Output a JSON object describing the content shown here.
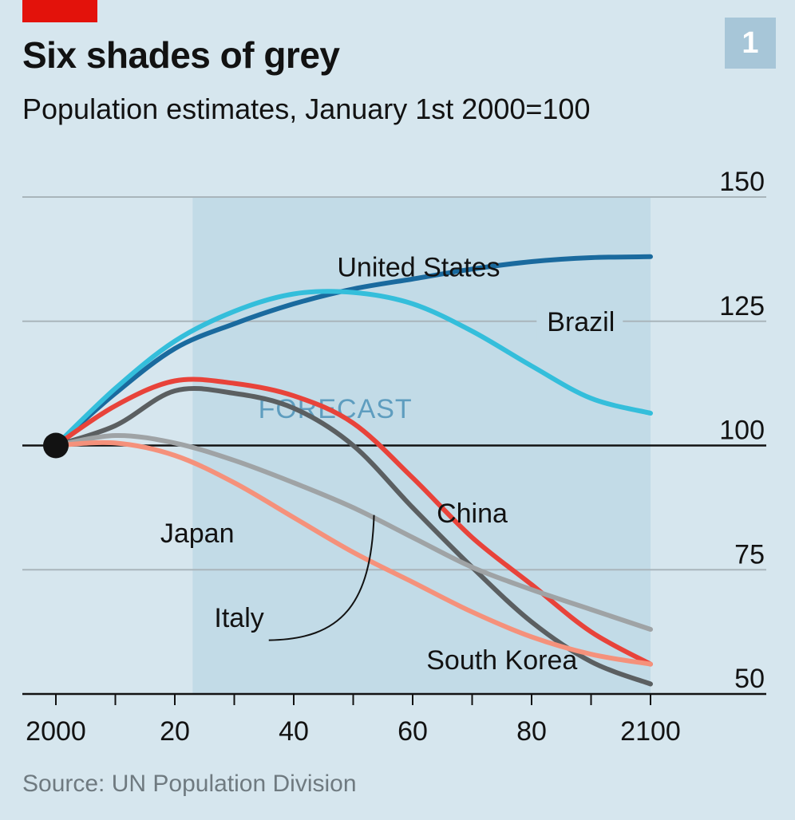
{
  "header": {
    "title": "Six shades of grey",
    "subtitle": "Population estimates, January 1st 2000=100",
    "chart_number": "1"
  },
  "footer": {
    "source": "Source: UN Population Division"
  },
  "colors": {
    "background": "#d6e6ee",
    "forecast_band": "#c2dbe7",
    "accent_red": "#e3120b",
    "grid": "#a9b5bb"
  },
  "chart_data": {
    "type": "line",
    "title": "Six shades of grey",
    "subtitle": "Population estimates, January 1st 2000=100",
    "ylim": [
      50,
      150
    ],
    "xlim": [
      2000,
      2100
    ],
    "y_ticks": [
      50,
      75,
      100,
      125,
      150
    ],
    "y_tick_labels": [
      "50",
      "75",
      "100",
      "125",
      "150"
    ],
    "x_ticks": [
      2000,
      2010,
      2020,
      2030,
      2040,
      2050,
      2060,
      2070,
      2080,
      2090,
      2100
    ],
    "x_tick_labels": [
      {
        "x": 2000,
        "label": "2000"
      },
      {
        "x": 2020,
        "label": "20"
      },
      {
        "x": 2040,
        "label": "40"
      },
      {
        "x": 2060,
        "label": "60"
      },
      {
        "x": 2080,
        "label": "80"
      },
      {
        "x": 2100,
        "label": "2100"
      }
    ],
    "grid": true,
    "forecast": {
      "label": "FORECAST",
      "start": 2023,
      "end": 2100
    },
    "reference_point": {
      "x": 2000,
      "y": 100
    },
    "series": [
      {
        "name": "United States",
        "color": "#1a6a9e",
        "x": [
          2000,
          2010,
          2020,
          2030,
          2040,
          2050,
          2060,
          2070,
          2080,
          2090,
          2100
        ],
        "y": [
          100,
          110.5,
          119.5,
          124.5,
          128.5,
          131.5,
          133.5,
          135.5,
          137.0,
          137.8,
          138.0
        ]
      },
      {
        "name": "Brazil",
        "color": "#34bedb",
        "x": [
          2000,
          2010,
          2020,
          2030,
          2040,
          2050,
          2060,
          2070,
          2080,
          2090,
          2100
        ],
        "y": [
          100,
          111.5,
          121.0,
          127.0,
          130.5,
          130.8,
          128.5,
          123.0,
          116.0,
          109.5,
          106.5
        ]
      },
      {
        "name": "China",
        "color": "#e8433a",
        "x": [
          2000,
          2010,
          2020,
          2030,
          2040,
          2050,
          2060,
          2070,
          2080,
          2090,
          2100
        ],
        "y": [
          100,
          108.0,
          113.0,
          112.5,
          110.0,
          104.5,
          93.5,
          81.5,
          72.0,
          62.5,
          56.0
        ]
      },
      {
        "name": "South Korea",
        "color": "#5b5f61",
        "x": [
          2000,
          2010,
          2020,
          2030,
          2040,
          2050,
          2060,
          2070,
          2080,
          2090,
          2100
        ],
        "y": [
          100,
          104.0,
          111.0,
          110.5,
          107.5,
          100.0,
          87.5,
          75.5,
          64.5,
          56.5,
          52.0
        ]
      },
      {
        "name": "Japan",
        "color": "#9fa3a5",
        "x": [
          2000,
          2010,
          2020,
          2030,
          2040,
          2050,
          2060,
          2070,
          2080,
          2090,
          2100
        ],
        "y": [
          100,
          102.0,
          100.5,
          97.0,
          92.5,
          87.5,
          81.5,
          75.5,
          71.0,
          67.0,
          63.0
        ]
      },
      {
        "name": "Italy",
        "color": "#f5917b",
        "x": [
          2000,
          2010,
          2020,
          2030,
          2040,
          2050,
          2060,
          2070,
          2080,
          2090,
          2100
        ],
        "y": [
          100,
          100.5,
          98.0,
          92.5,
          85.5,
          78.5,
          72.5,
          66.5,
          61.5,
          58.0,
          56.0
        ]
      }
    ],
    "annotations": [
      {
        "series": "United States",
        "text": "United States"
      },
      {
        "series": "Brazil",
        "text": "Brazil"
      },
      {
        "series": "China",
        "text": "China"
      },
      {
        "series": "Japan",
        "text": "Japan"
      },
      {
        "series": "Italy",
        "text": "Italy"
      },
      {
        "series": "South Korea",
        "text": "South Korea"
      }
    ]
  }
}
